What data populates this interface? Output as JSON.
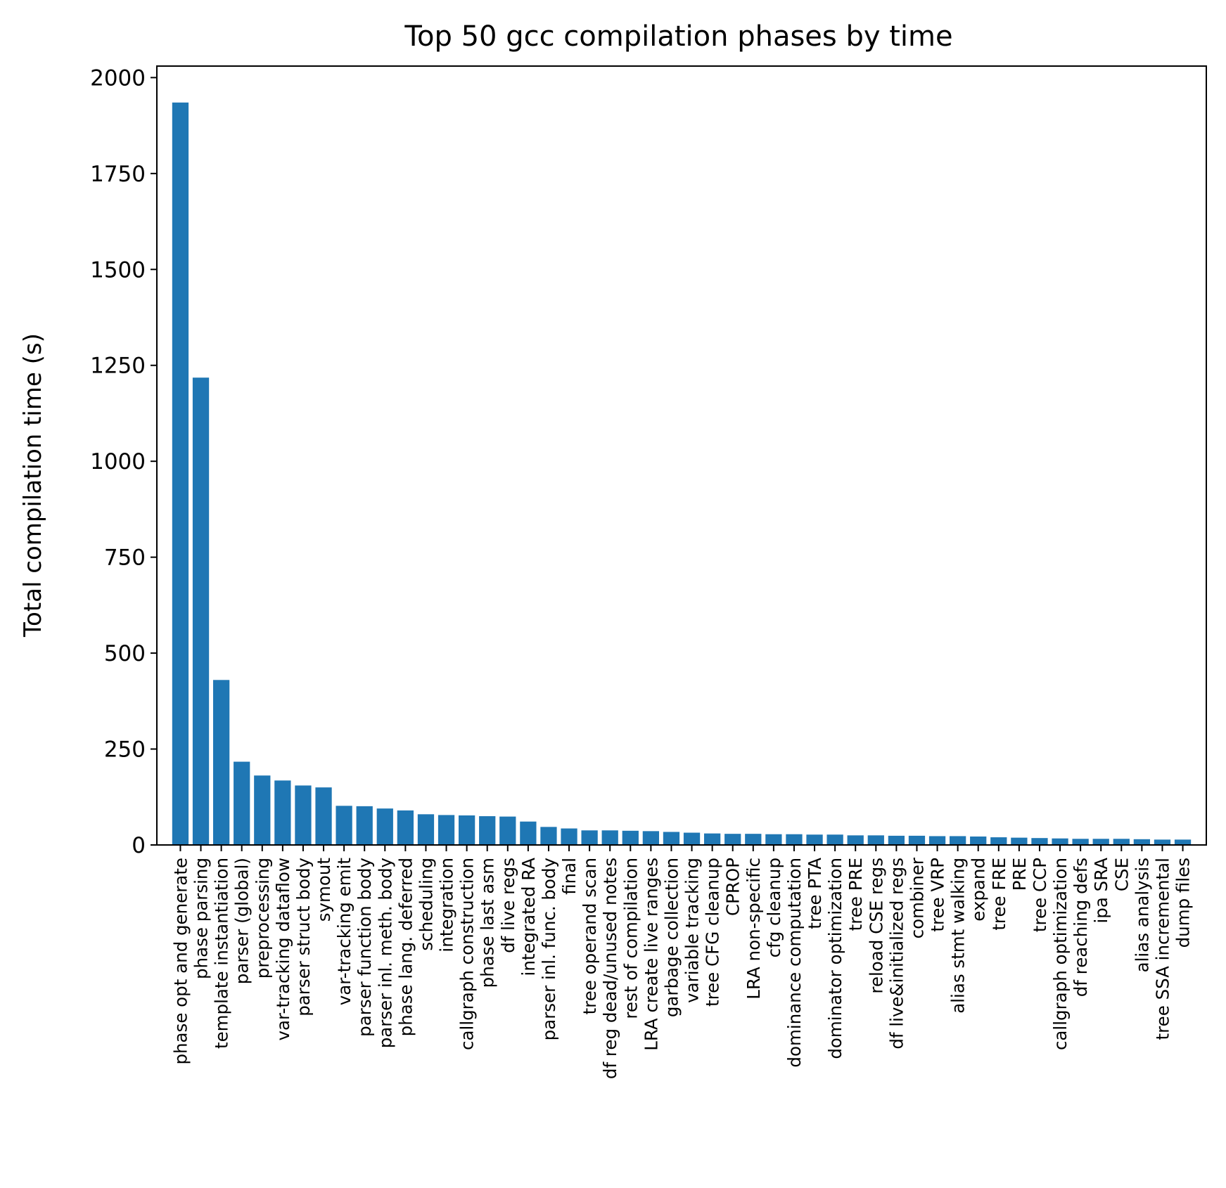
{
  "chart_data": {
    "type": "bar",
    "title": "Top 50 gcc compilation phases by time",
    "xlabel": "",
    "ylabel": "Total compilation time (s)",
    "ylim": [
      0,
      2030
    ],
    "yticks": [
      0,
      250,
      500,
      750,
      1000,
      1250,
      1500,
      1750,
      2000
    ],
    "grid": false,
    "bar_color": "#1f77b4",
    "categories": [
      "phase opt and generate",
      "phase parsing",
      "template instantiation",
      "parser (global)",
      "preprocessing",
      "var-tracking dataflow",
      "parser struct body",
      "symout",
      "var-tracking emit",
      "parser function body",
      "parser inl. meth. body",
      "phase lang. deferred",
      "scheduling",
      "integration",
      "callgraph construction",
      "phase last asm",
      "df live regs",
      "integrated RA",
      "parser inl. func. body",
      "final",
      "tree operand scan",
      "df reg dead/unused notes",
      "rest of compilation",
      "LRA create live ranges",
      "garbage collection",
      "variable tracking",
      "tree CFG cleanup",
      "CPROP",
      "LRA non-specific",
      "cfg cleanup",
      "dominance computation",
      "tree PTA",
      "dominator optimization",
      "tree PRE",
      "reload CSE regs",
      "df live&initialized regs",
      "combiner",
      "tree VRP",
      "alias stmt walking",
      "expand",
      "tree FRE",
      "PRE",
      "tree CCP",
      "callgraph optimization",
      "df reaching defs",
      "ipa SRA",
      "CSE",
      "alias analysis",
      "tree SSA incremental",
      "dump files"
    ],
    "values": [
      1935,
      1218,
      430,
      217,
      181,
      168,
      155,
      150,
      102,
      101,
      95,
      90,
      80,
      78,
      77,
      75,
      74,
      61,
      47,
      43,
      38,
      38,
      37,
      36,
      34,
      32,
      30,
      29,
      29,
      28,
      28,
      27,
      27,
      25,
      25,
      24,
      24,
      23,
      23,
      22,
      20,
      19,
      18,
      17,
      16,
      16,
      16,
      15,
      14,
      14
    ]
  }
}
